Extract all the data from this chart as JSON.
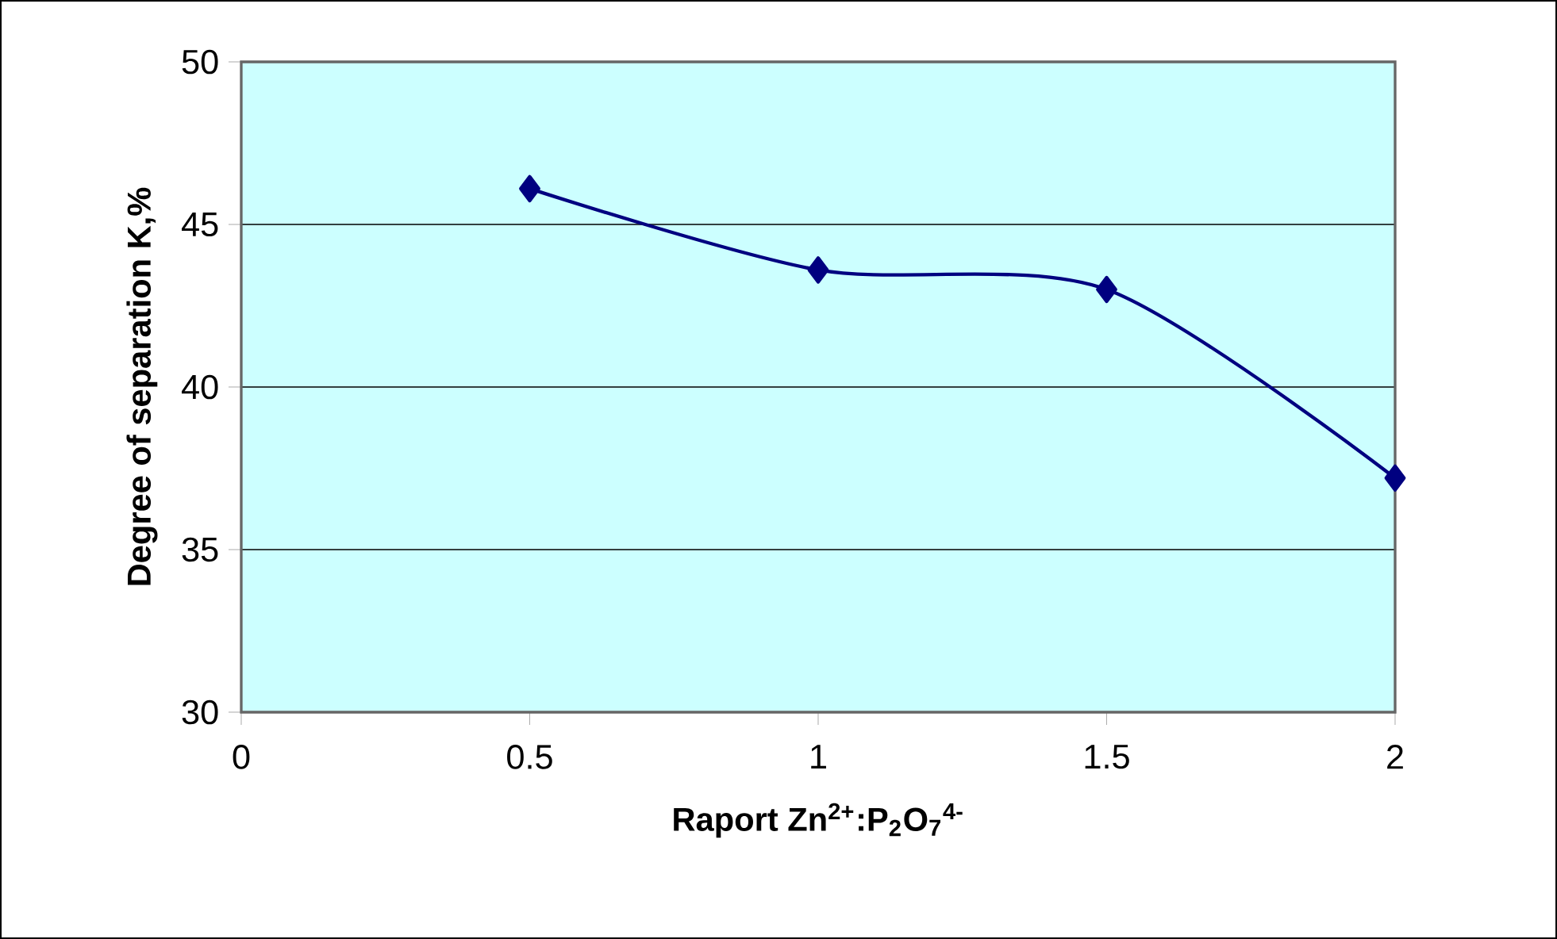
{
  "chart_data": {
    "type": "line",
    "xlabel": "Raport Zn$^{2+}$:P$_{2}$O$_{7}$$^{4-}$",
    "ylabel": "Degree of separation K,%",
    "x": [
      0.5,
      1,
      1.5,
      2
    ],
    "series": [
      {
        "color": "#000080",
        "values": [
          46.1,
          43.6,
          43.0,
          37.2
        ]
      }
    ],
    "xlim": [
      0,
      2
    ],
    "ylim": [
      30,
      50
    ],
    "xticks": [
      0,
      0.5,
      1,
      1.5,
      2
    ],
    "yticks": [
      30,
      35,
      40,
      45,
      50
    ],
    "grid": "y",
    "marker": "diamond",
    "line_style": "solid"
  }
}
